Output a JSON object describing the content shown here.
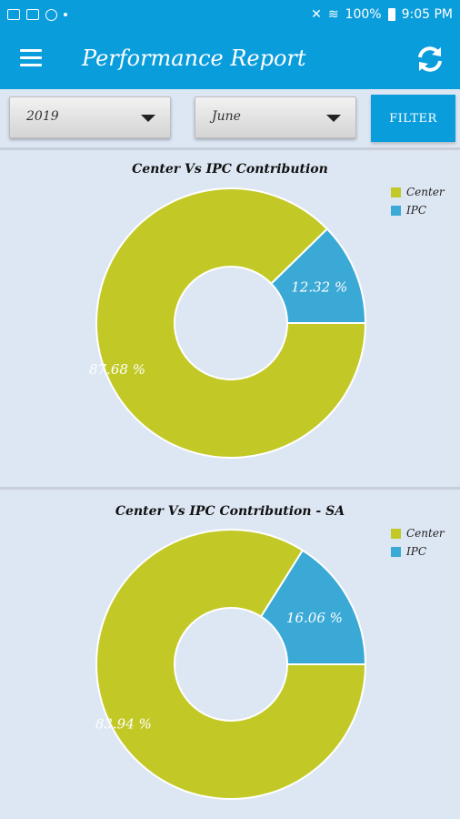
{
  "status_bar": {
    "battery": "100%",
    "time": "9:05 PM"
  },
  "app_bar": {
    "title": "Performance Report"
  },
  "filters": {
    "year": "2019",
    "month": "June",
    "filter_label": "FILTER"
  },
  "colors": {
    "primary": "#0a9ddc",
    "center": "#c2c927",
    "ipc": "#3ba9d6"
  },
  "chart_data": [
    {
      "type": "pie",
      "title": "Center Vs IPC Contribution",
      "categories": [
        "Center",
        "IPC"
      ],
      "values": [
        87.68,
        12.32
      ],
      "labels": [
        "87.68 %",
        "12.32 %"
      ],
      "colors": [
        "#c2c927",
        "#3ba9d6"
      ],
      "legend": "top-right",
      "donut": true
    },
    {
      "type": "pie",
      "title": "Center Vs IPC Contribution - SA",
      "categories": [
        "Center",
        "IPC"
      ],
      "values": [
        83.94,
        16.06
      ],
      "labels": [
        "83.94 %",
        "16.06 %"
      ],
      "colors": [
        "#c2c927",
        "#3ba9d6"
      ],
      "legend": "top-right",
      "donut": true
    }
  ]
}
